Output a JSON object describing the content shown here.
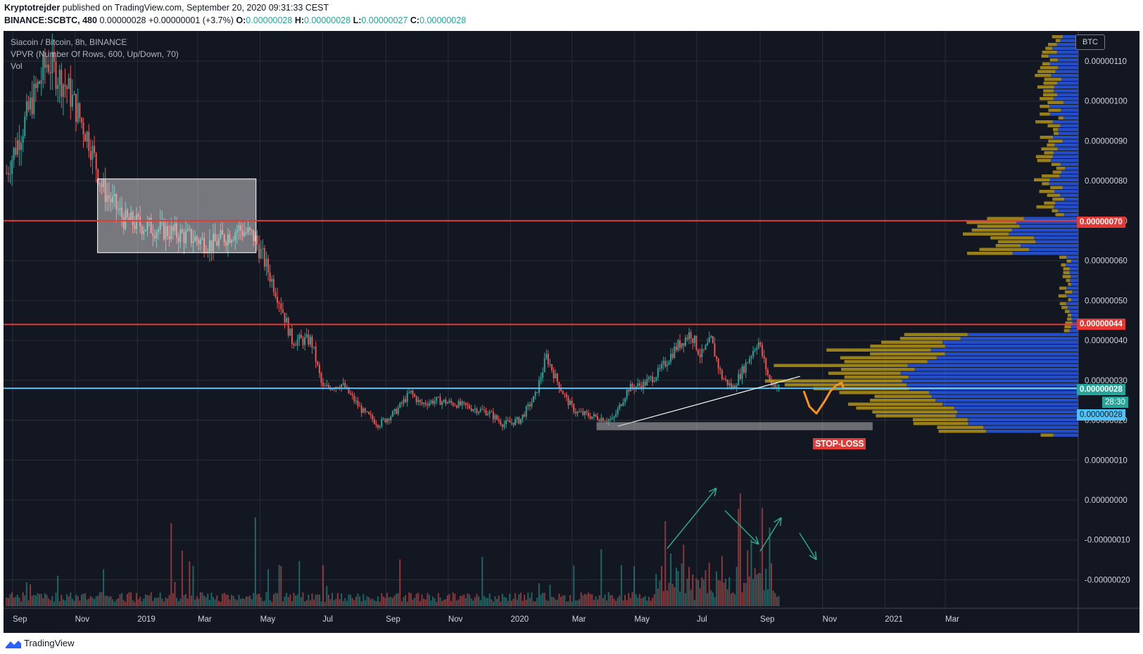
{
  "header": {
    "author": "Kryptotrejder",
    "published": "published on TradingView.com, September 20, 2020 09:31:33 CEST",
    "symbol": "BINANCE:SCBTC, 480",
    "last": "0.00000028",
    "change": "+0.00000001 (+3.7%)",
    "o_label": "O:",
    "o": "0.00000028",
    "h_label": "H:",
    "h": "0.00000028",
    "l_label": "L:",
    "l": "0.00000027",
    "c_label": "C:",
    "c": "0.00000028"
  },
  "legend": {
    "title": "Siacoin / Bitcoin, 8h, BINANCE",
    "indicator": "VPVR (Number Of Rows, 600, Up/Down, 70)",
    "volume": "Vol"
  },
  "axis": {
    "unit": "BTC",
    "countdown": "28:30"
  },
  "annotations": {
    "stop_loss": "STOP-LOSS"
  },
  "tags": {
    "resistance_high": "0.00000070",
    "resistance_low": "0.00000044",
    "current_price": "0.00000028",
    "current_price_2": "0.00000028"
  },
  "footer": {
    "brand": "TradingView"
  },
  "colors": {
    "background": "#131722",
    "up": "#26a69a",
    "down": "#ef5350",
    "resistance": "#e53935",
    "price_line": "#4fc3f7",
    "vpvr_up": "#2962ff",
    "vpvr_down": "#c8a415",
    "drawing": "#f7931a"
  },
  "chart_data": {
    "type": "candlestick",
    "title": "Siacoin / Bitcoin, 8h, BINANCE",
    "y_axis": {
      "ylim": [
        -2.7e-07,
        1.18e-06
      ],
      "ticks": [
        "0.00000110",
        "0.00000100",
        "0.00000090",
        "0.00000080",
        "0.00000070",
        "0.00000060",
        "0.00000050",
        "0.00000040",
        "0.00000030",
        "0.00000020",
        "0.00000010",
        "0.00000000",
        "-0.00000010",
        "-0.00000020"
      ],
      "tick_values": [
        110,
        100,
        90,
        80,
        70,
        60,
        50,
        40,
        30,
        20,
        10,
        0,
        -10,
        -20
      ],
      "value_scale": "1e-8 BTC"
    },
    "x_axis": {
      "ticks": [
        "Sep",
        "Nov",
        "2019",
        "Mar",
        "May",
        "Jul",
        "Sep",
        "Nov",
        "2020",
        "Mar",
        "May",
        "Jul",
        "Sep",
        "Nov",
        "2021",
        "Mar"
      ]
    },
    "price_path": {
      "unit": "1e-8 BTC",
      "dates": [
        "2018-08-26",
        "2018-09-20",
        "2018-10-05",
        "2018-10-25",
        "2018-11-15",
        "2018-11-28",
        "2018-12-20",
        "2019-01-20",
        "2019-02-20",
        "2019-03-15",
        "2019-04-10",
        "2019-04-25",
        "2019-05-05",
        "2019-05-20",
        "2019-06-01",
        "2019-06-20",
        "2019-07-01",
        "2019-07-20",
        "2019-08-10",
        "2019-08-25",
        "2019-09-10",
        "2019-09-25",
        "2019-10-05",
        "2019-10-20",
        "2019-11-10",
        "2019-12-10",
        "2019-12-25",
        "2020-01-10",
        "2020-01-25",
        "2020-02-05",
        "2020-02-15",
        "2020-02-25",
        "2020-03-05",
        "2020-03-20",
        "2020-04-10",
        "2020-04-25",
        "2020-05-10",
        "2020-05-25",
        "2020-06-10",
        "2020-06-25",
        "2020-07-05",
        "2020-07-15",
        "2020-07-25",
        "2020-08-05",
        "2020-08-20",
        "2020-08-30",
        "2020-09-10",
        "2020-09-20"
      ],
      "closes": [
        82,
        100,
        110,
        103,
        90,
        78,
        70,
        68,
        66,
        64,
        68,
        66,
        60,
        50,
        40,
        40,
        28,
        29,
        22,
        19,
        22,
        27,
        24,
        25,
        24,
        22,
        19,
        20,
        26,
        36,
        30,
        25,
        22,
        21,
        20,
        28,
        29,
        32,
        38,
        42,
        36,
        40,
        31,
        28,
        35,
        40,
        30,
        28
      ]
    },
    "price_lines": [
      {
        "label": "0.00000070",
        "value": 70,
        "color": "#e53935"
      },
      {
        "label": "0.00000044",
        "value": 44,
        "color": "#e53935"
      },
      {
        "label": "0.00000028",
        "value": 28,
        "color": "#4fc3f7"
      }
    ],
    "annotations": [
      {
        "text": "STOP-LOSS",
        "type": "zone",
        "value_range": [
          17.5,
          19.5
        ]
      }
    ]
  }
}
